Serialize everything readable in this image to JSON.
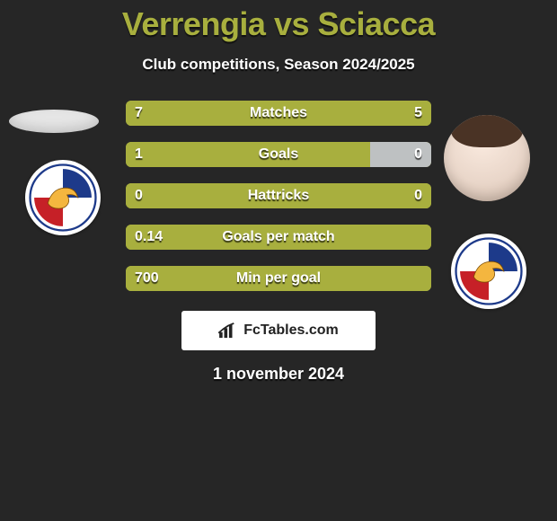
{
  "title": "Verrengia vs Sciacca",
  "title_color": "#a8af3e",
  "title_fontsize": 36,
  "subtitle": "Club competitions, Season 2024/2025",
  "subtitle_fontsize": 17,
  "footer_date": "1 november 2024",
  "footer_fontsize": 18,
  "background_color": "#262626",
  "text_color": "#ffffff",
  "bar_active_color": "#a8af3e",
  "bar_muted_color": "#bec1c2",
  "stat_fontsize": 16,
  "watermark_text": "FcTables.com",
  "club_name": "POTENZA SC",
  "stats": [
    {
      "label": "Matches",
      "left_value": "7",
      "right_value": "5",
      "left_pct": 58,
      "right_pct": 42,
      "right_is_active": true
    },
    {
      "label": "Goals",
      "left_value": "1",
      "right_value": "0",
      "left_pct": 80,
      "right_pct": 20,
      "right_is_active": false
    },
    {
      "label": "Hattricks",
      "left_value": "0",
      "right_value": "0",
      "left_pct": 100,
      "right_pct": 0,
      "right_is_active": false
    },
    {
      "label": "Goals per match",
      "left_value": "0.14",
      "right_value": "",
      "left_pct": 100,
      "right_pct": 0,
      "right_is_active": false
    },
    {
      "label": "Min per goal",
      "left_value": "700",
      "right_value": "",
      "left_pct": 100,
      "right_pct": 0,
      "right_is_active": false
    }
  ]
}
